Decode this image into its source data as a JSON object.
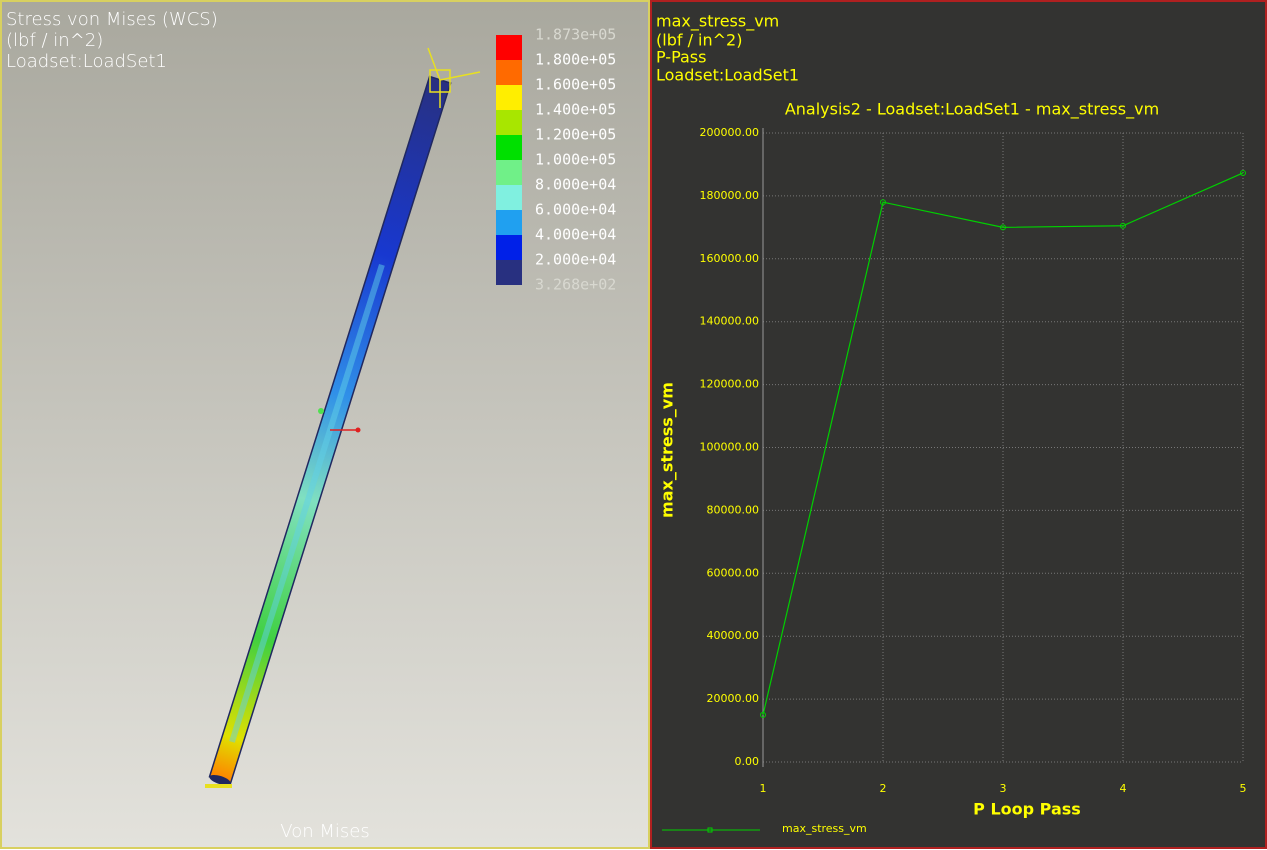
{
  "viewport": {
    "title": "Stress von Mises (WCS)",
    "units": "(lbf / in^2)",
    "loadset": "Loadset:LoadSet1",
    "footer": "Von Mises",
    "legend": {
      "labels": [
        "1.873e+05",
        "1.800e+05",
        "1.600e+05",
        "1.400e+05",
        "1.200e+05",
        "1.000e+05",
        "8.000e+04",
        "6.000e+04",
        "4.000e+04",
        "2.000e+04",
        "3.268e+02"
      ],
      "colors": [
        "#ff0000",
        "#ff6a00",
        "#ffee00",
        "#a8e600",
        "#00e000",
        "#70f088",
        "#80f0e0",
        "#20a0f0",
        "#0020e8",
        "#283080"
      ]
    }
  },
  "header": {
    "quantity": "max_stress_vm",
    "units": "(lbf / in^2)",
    "pass": "P-Pass",
    "loadset": "Loadset:LoadSet1"
  },
  "chart_data": {
    "type": "line",
    "title": "Analysis2 - Loadset:LoadSet1 - max_stress_vm",
    "x_label": "P Loop Pass",
    "y_label": "max_stress_vm",
    "x": [
      1,
      2,
      3,
      4,
      5
    ],
    "series": [
      {
        "name": "max_stress_vm",
        "color": "#00d000",
        "values": [
          15000,
          178000,
          170000,
          170500,
          187300
        ]
      }
    ],
    "xlim": [
      1,
      5
    ],
    "xticks": [
      1,
      2,
      3,
      4,
      5
    ],
    "ylim": [
      0,
      200000
    ],
    "yticks": [
      {
        "value": 0,
        "label": "0.00"
      },
      {
        "value": 20000,
        "label": "20000.00"
      },
      {
        "value": 40000,
        "label": "40000.00"
      },
      {
        "value": 60000,
        "label": "60000.00"
      },
      {
        "value": 80000,
        "label": "80000.00"
      },
      {
        "value": 100000,
        "label": "100000.00"
      },
      {
        "value": 120000,
        "label": "120000.00"
      },
      {
        "value": 140000,
        "label": "140000.00"
      },
      {
        "value": 160000,
        "label": "160000.00"
      },
      {
        "value": 180000,
        "label": "180000.00"
      },
      {
        "value": 200000,
        "label": "200000.00"
      }
    ],
    "grid": true
  }
}
